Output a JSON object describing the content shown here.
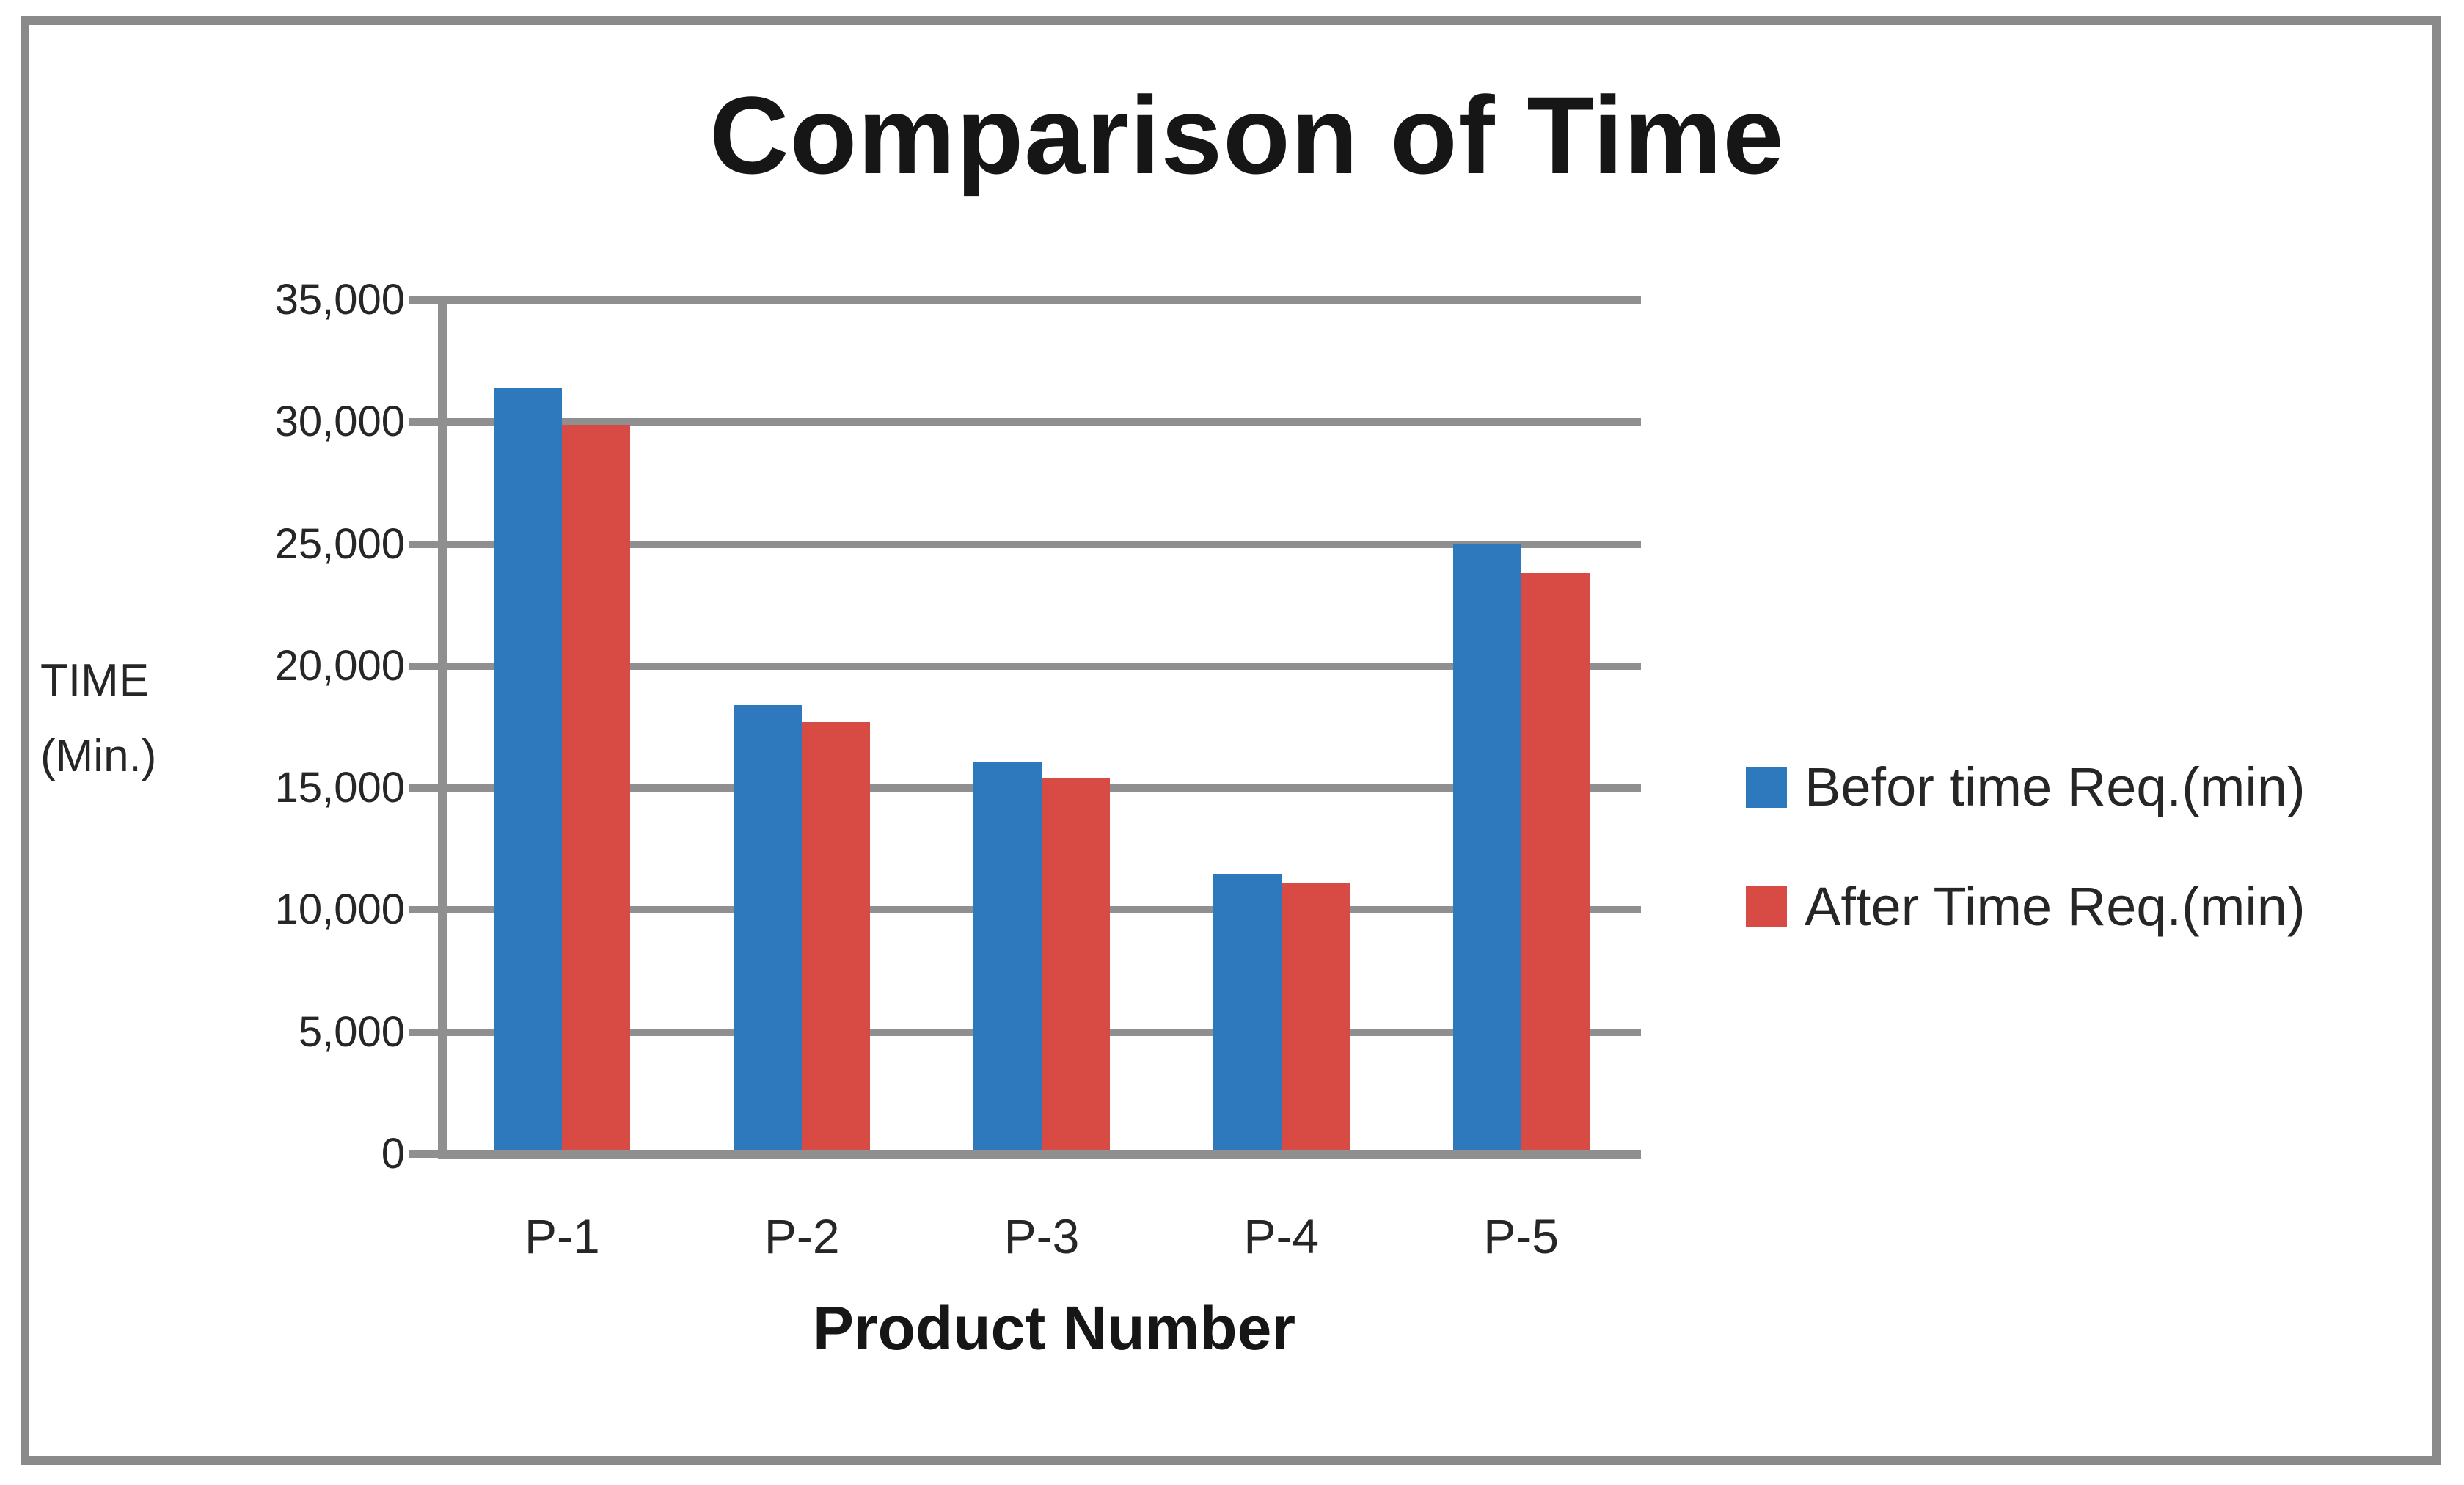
{
  "title": "Comparison of Time",
  "y_axis": {
    "label_line1": "TIME",
    "label_line2": "(Min.)",
    "tick_labels": [
      "0",
      "5,000",
      "10,000",
      "15,000",
      "20,000",
      "25,000",
      "30,000",
      "35,000"
    ]
  },
  "x_axis": {
    "title": "Product Number"
  },
  "colors": {
    "series_blue": "#2E79BE",
    "series_red": "#D74B44",
    "gridline_gray": "#8F8F8F",
    "frame_gray": "#8A8A8A"
  },
  "chart_data": {
    "type": "bar",
    "title": "Comparison of Time",
    "categories": [
      "P-1",
      "P-2",
      "P-3",
      "P-4",
      "P-5"
    ],
    "series": [
      {
        "name": "Befor time Req.(min)",
        "color": "#2E79BE",
        "values": [
          31400,
          18400,
          16100,
          11500,
          25000
        ]
      },
      {
        "name": "After Time Req.(min)",
        "color": "#D74B44",
        "values": [
          29900,
          17700,
          15400,
          11100,
          23800
        ]
      }
    ],
    "xlabel": "Product Number",
    "ylabel": "TIME (Min.)",
    "ylim": [
      0,
      35000
    ],
    "ytick_step": 5000,
    "grid": true,
    "legend_position": "right"
  }
}
